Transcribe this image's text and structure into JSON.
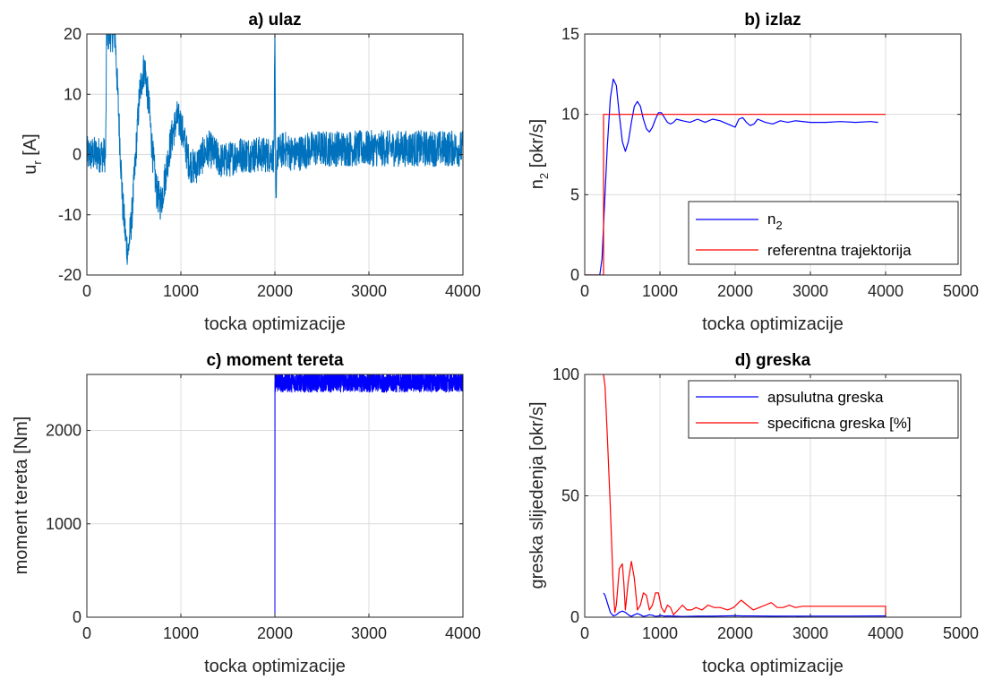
{
  "chart_data": [
    {
      "type": "line",
      "title": "a) ulaz",
      "xlabel": "tocka optimizacije",
      "ylabel": "u",
      "ylabel_sub": "r",
      "ylabel_suffix": " [A]",
      "xlim": [
        0,
        4000
      ],
      "ylim": [
        -20,
        20
      ],
      "xticks": [
        0,
        1000,
        2000,
        3000,
        4000
      ],
      "yticks": [
        -20,
        -10,
        0,
        10,
        20
      ],
      "grid": true,
      "legend": null,
      "series": [
        {
          "color": "#0072BD",
          "x": [
            0,
            200,
            210,
            230,
            260,
            300,
            340,
            380,
            420,
            440,
            480,
            520,
            560,
            600,
            620,
            660,
            700,
            740,
            780,
            800,
            840,
            880,
            920,
            960,
            1000,
            1040,
            1080,
            1120,
            1160,
            1200,
            1240,
            1300,
            1360,
            1420,
            1500,
            1600,
            1700,
            1800,
            1900,
            1990,
            2000,
            2010,
            2020,
            2100,
            2200,
            2400,
            2600,
            2800,
            3000,
            3200,
            3400,
            3600,
            3800,
            4000
          ],
          "y": [
            0,
            0,
            20,
            20,
            20,
            20,
            6,
            -8,
            -15,
            -16,
            -10,
            0,
            10,
            14,
            14,
            8,
            0,
            -6,
            -8,
            -7,
            -3,
            1,
            4,
            6,
            5,
            2,
            -1,
            -2,
            -2,
            -1,
            0,
            1,
            0,
            -1,
            -1,
            0,
            0,
            0,
            0,
            0,
            20,
            -10,
            0,
            1,
            0,
            1,
            1,
            1,
            1,
            1,
            1,
            1,
            1,
            1
          ],
          "noise_amplitude": 3
        }
      ]
    },
    {
      "type": "line",
      "title": "b) izlaz",
      "xlabel": "tocka optimizacije",
      "ylabel": "n",
      "ylabel_sub": "2",
      "ylabel_suffix": " [okr/s]",
      "xlim": [
        0,
        5000
      ],
      "ylim": [
        0,
        15
      ],
      "xticks": [
        0,
        1000,
        2000,
        3000,
        4000,
        5000
      ],
      "yticks": [
        0,
        5,
        10,
        15
      ],
      "grid": true,
      "legend": "bottom-right",
      "series": [
        {
          "name": "n",
          "name_sub": "2",
          "color": "#0000FF",
          "x": [
            0,
            200,
            230,
            260,
            300,
            340,
            380,
            420,
            460,
            500,
            540,
            580,
            620,
            660,
            700,
            740,
            780,
            820,
            860,
            900,
            940,
            980,
            1020,
            1060,
            1100,
            1140,
            1180,
            1220,
            1300,
            1400,
            1500,
            1600,
            1700,
            1800,
            1900,
            1950,
            2000,
            2050,
            2100,
            2150,
            2200,
            2250,
            2300,
            2400,
            2500,
            2600,
            2700,
            2800,
            3000,
            3200,
            3400,
            3600,
            3800,
            3900
          ],
          "y": [
            0,
            0,
            1,
            4,
            8,
            11,
            12.2,
            11.8,
            10,
            8.3,
            7.7,
            8.3,
            9.5,
            10.5,
            10.8,
            10.5,
            9.7,
            9.1,
            8.9,
            9.2,
            9.7,
            10.1,
            10.1,
            9.8,
            9.5,
            9.4,
            9.5,
            9.7,
            9.6,
            9.5,
            9.7,
            9.5,
            9.7,
            9.6,
            9.4,
            9.3,
            9.2,
            9.7,
            9.8,
            9.5,
            9.3,
            9.4,
            9.7,
            9.5,
            9.4,
            9.6,
            9.5,
            9.6,
            9.5,
            9.5,
            9.55,
            9.5,
            9.55,
            9.5
          ]
        },
        {
          "name": "referentna trajektorija",
          "color": "#FF0000",
          "x": [
            0,
            250,
            250,
            4000
          ],
          "y": [
            0,
            0,
            10,
            10
          ]
        }
      ]
    },
    {
      "type": "line",
      "title": "c) moment tereta",
      "xlabel": "tocka optimizacije",
      "ylabel": "moment tereta [Nm]",
      "xlim": [
        0,
        4000
      ],
      "ylim": [
        0,
        2600
      ],
      "xticks": [
        0,
        1000,
        2000,
        3000,
        4000
      ],
      "yticks": [
        0,
        1000,
        2000
      ],
      "grid": true,
      "legend": null,
      "series": [
        {
          "color": "#0000FF",
          "x": [
            0,
            2000,
            2000,
            4000
          ],
          "y": [
            0,
            0,
            2520,
            2520
          ],
          "noise_amplitude": 110,
          "noise_from_x": 2000
        }
      ]
    },
    {
      "type": "line",
      "title": "d) greska",
      "xlabel": "tocka optimizacije",
      "ylabel": "greska slijedenja [okr/s]",
      "xlim": [
        0,
        5000
      ],
      "ylim": [
        0,
        100
      ],
      "xticks": [
        0,
        1000,
        2000,
        3000,
        4000,
        5000
      ],
      "yticks": [
        0,
        50,
        100
      ],
      "grid": true,
      "legend": "top-right",
      "series": [
        {
          "name": "apsulutna greska",
          "color": "#0000FF",
          "x": [
            250,
            270,
            300,
            340,
            380,
            420,
            460,
            500,
            540,
            580,
            620,
            660,
            700,
            740,
            780,
            820,
            860,
            900,
            940,
            980,
            1020,
            1060,
            1100,
            1200,
            1300,
            1500,
            1700,
            2000,
            2100,
            2200,
            2500,
            3000,
            3500,
            4000
          ],
          "y": [
            10,
            9,
            6,
            2,
            0.5,
            1,
            2,
            2.5,
            2,
            1,
            0.3,
            1,
            1.5,
            1,
            0.3,
            0.6,
            1,
            0.8,
            0.3,
            0.5,
            0.7,
            0.4,
            0.5,
            0.4,
            0.3,
            0.4,
            0.4,
            0.6,
            0.5,
            0.5,
            0.4,
            0.45,
            0.45,
            0.5
          ]
        },
        {
          "name": "specificna greska [%]",
          "color": "#FF0000",
          "x": [
            250,
            270,
            300,
            340,
            380,
            400,
            420,
            460,
            500,
            520,
            540,
            580,
            620,
            660,
            700,
            740,
            780,
            820,
            860,
            900,
            940,
            980,
            1020,
            1060,
            1100,
            1140,
            1180,
            1240,
            1300,
            1360,
            1420,
            1480,
            1560,
            1640,
            1720,
            1800,
            1900,
            1980,
            2080,
            2160,
            2240,
            2320,
            2400,
            2480,
            2560,
            2640,
            2720,
            2800,
            2900,
            3000,
            3200,
            3400,
            3600,
            3800,
            4000,
            4000
          ],
          "y": [
            100,
            95,
            75,
            45,
            12,
            2,
            5,
            20,
            22,
            14,
            3,
            15,
            23,
            16,
            3,
            5,
            10,
            9,
            3,
            5,
            10,
            10,
            4,
            2,
            5,
            4,
            1,
            3,
            5,
            3,
            3,
            4,
            3,
            5,
            4,
            4,
            3,
            4,
            7,
            5,
            3,
            4,
            5,
            6,
            4,
            4,
            5,
            4,
            4.5,
            4.5,
            4.5,
            4.5,
            4.5,
            4.5,
            4.5,
            0
          ]
        }
      ]
    }
  ]
}
